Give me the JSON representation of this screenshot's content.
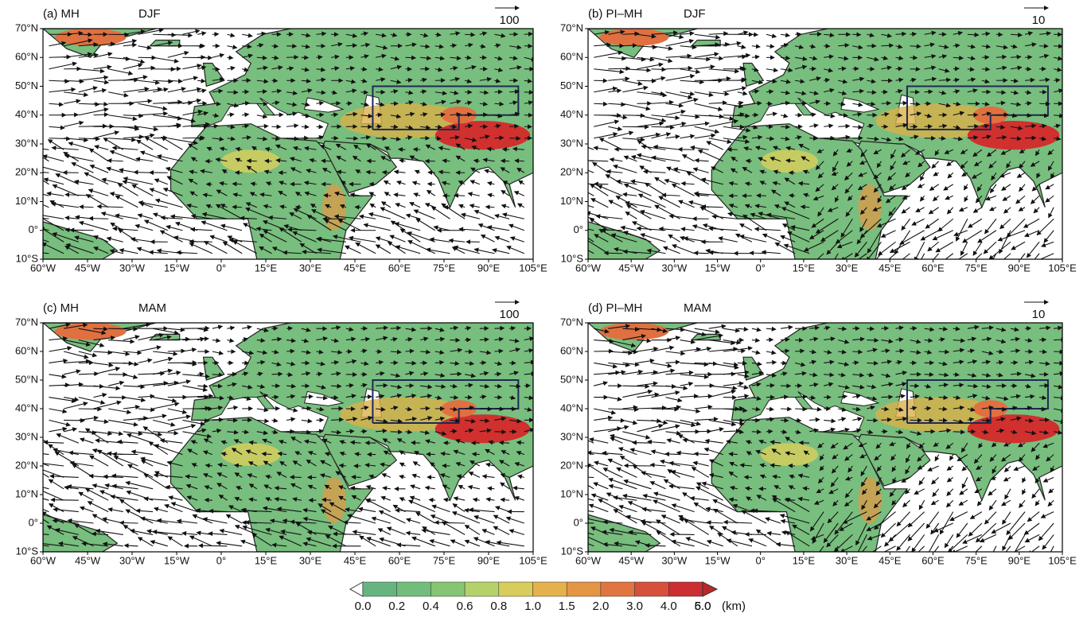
{
  "panels": [
    {
      "label": "(a) MH",
      "season": "DJF",
      "reference": "100"
    },
    {
      "label": "(b) PI–MH",
      "season": "DJF",
      "reference": "10"
    },
    {
      "label": "(c) MH",
      "season": "MAM",
      "reference": "100"
    },
    {
      "label": "(d) PI–MH",
      "season": "MAM",
      "reference": "10"
    }
  ],
  "axes": {
    "lat_labels": [
      "70°N",
      "60°N",
      "50°N",
      "40°N",
      "30°N",
      "20°N",
      "10°N",
      "0°",
      "10°S"
    ],
    "lon_labels": [
      "60°W",
      "45°W",
      "30°W",
      "15°W",
      "0°",
      "15°E",
      "30°E",
      "45°E",
      "60°E",
      "75°E",
      "90°E",
      "105°E"
    ]
  },
  "colorbar": {
    "labels": [
      "0.0",
      "0.2",
      "0.4",
      "0.6",
      "0.8",
      "1.0",
      "1.5",
      "2.0",
      "3.0",
      "4.0",
      "5.0",
      "6.0"
    ],
    "unit": "(km)"
  }
}
